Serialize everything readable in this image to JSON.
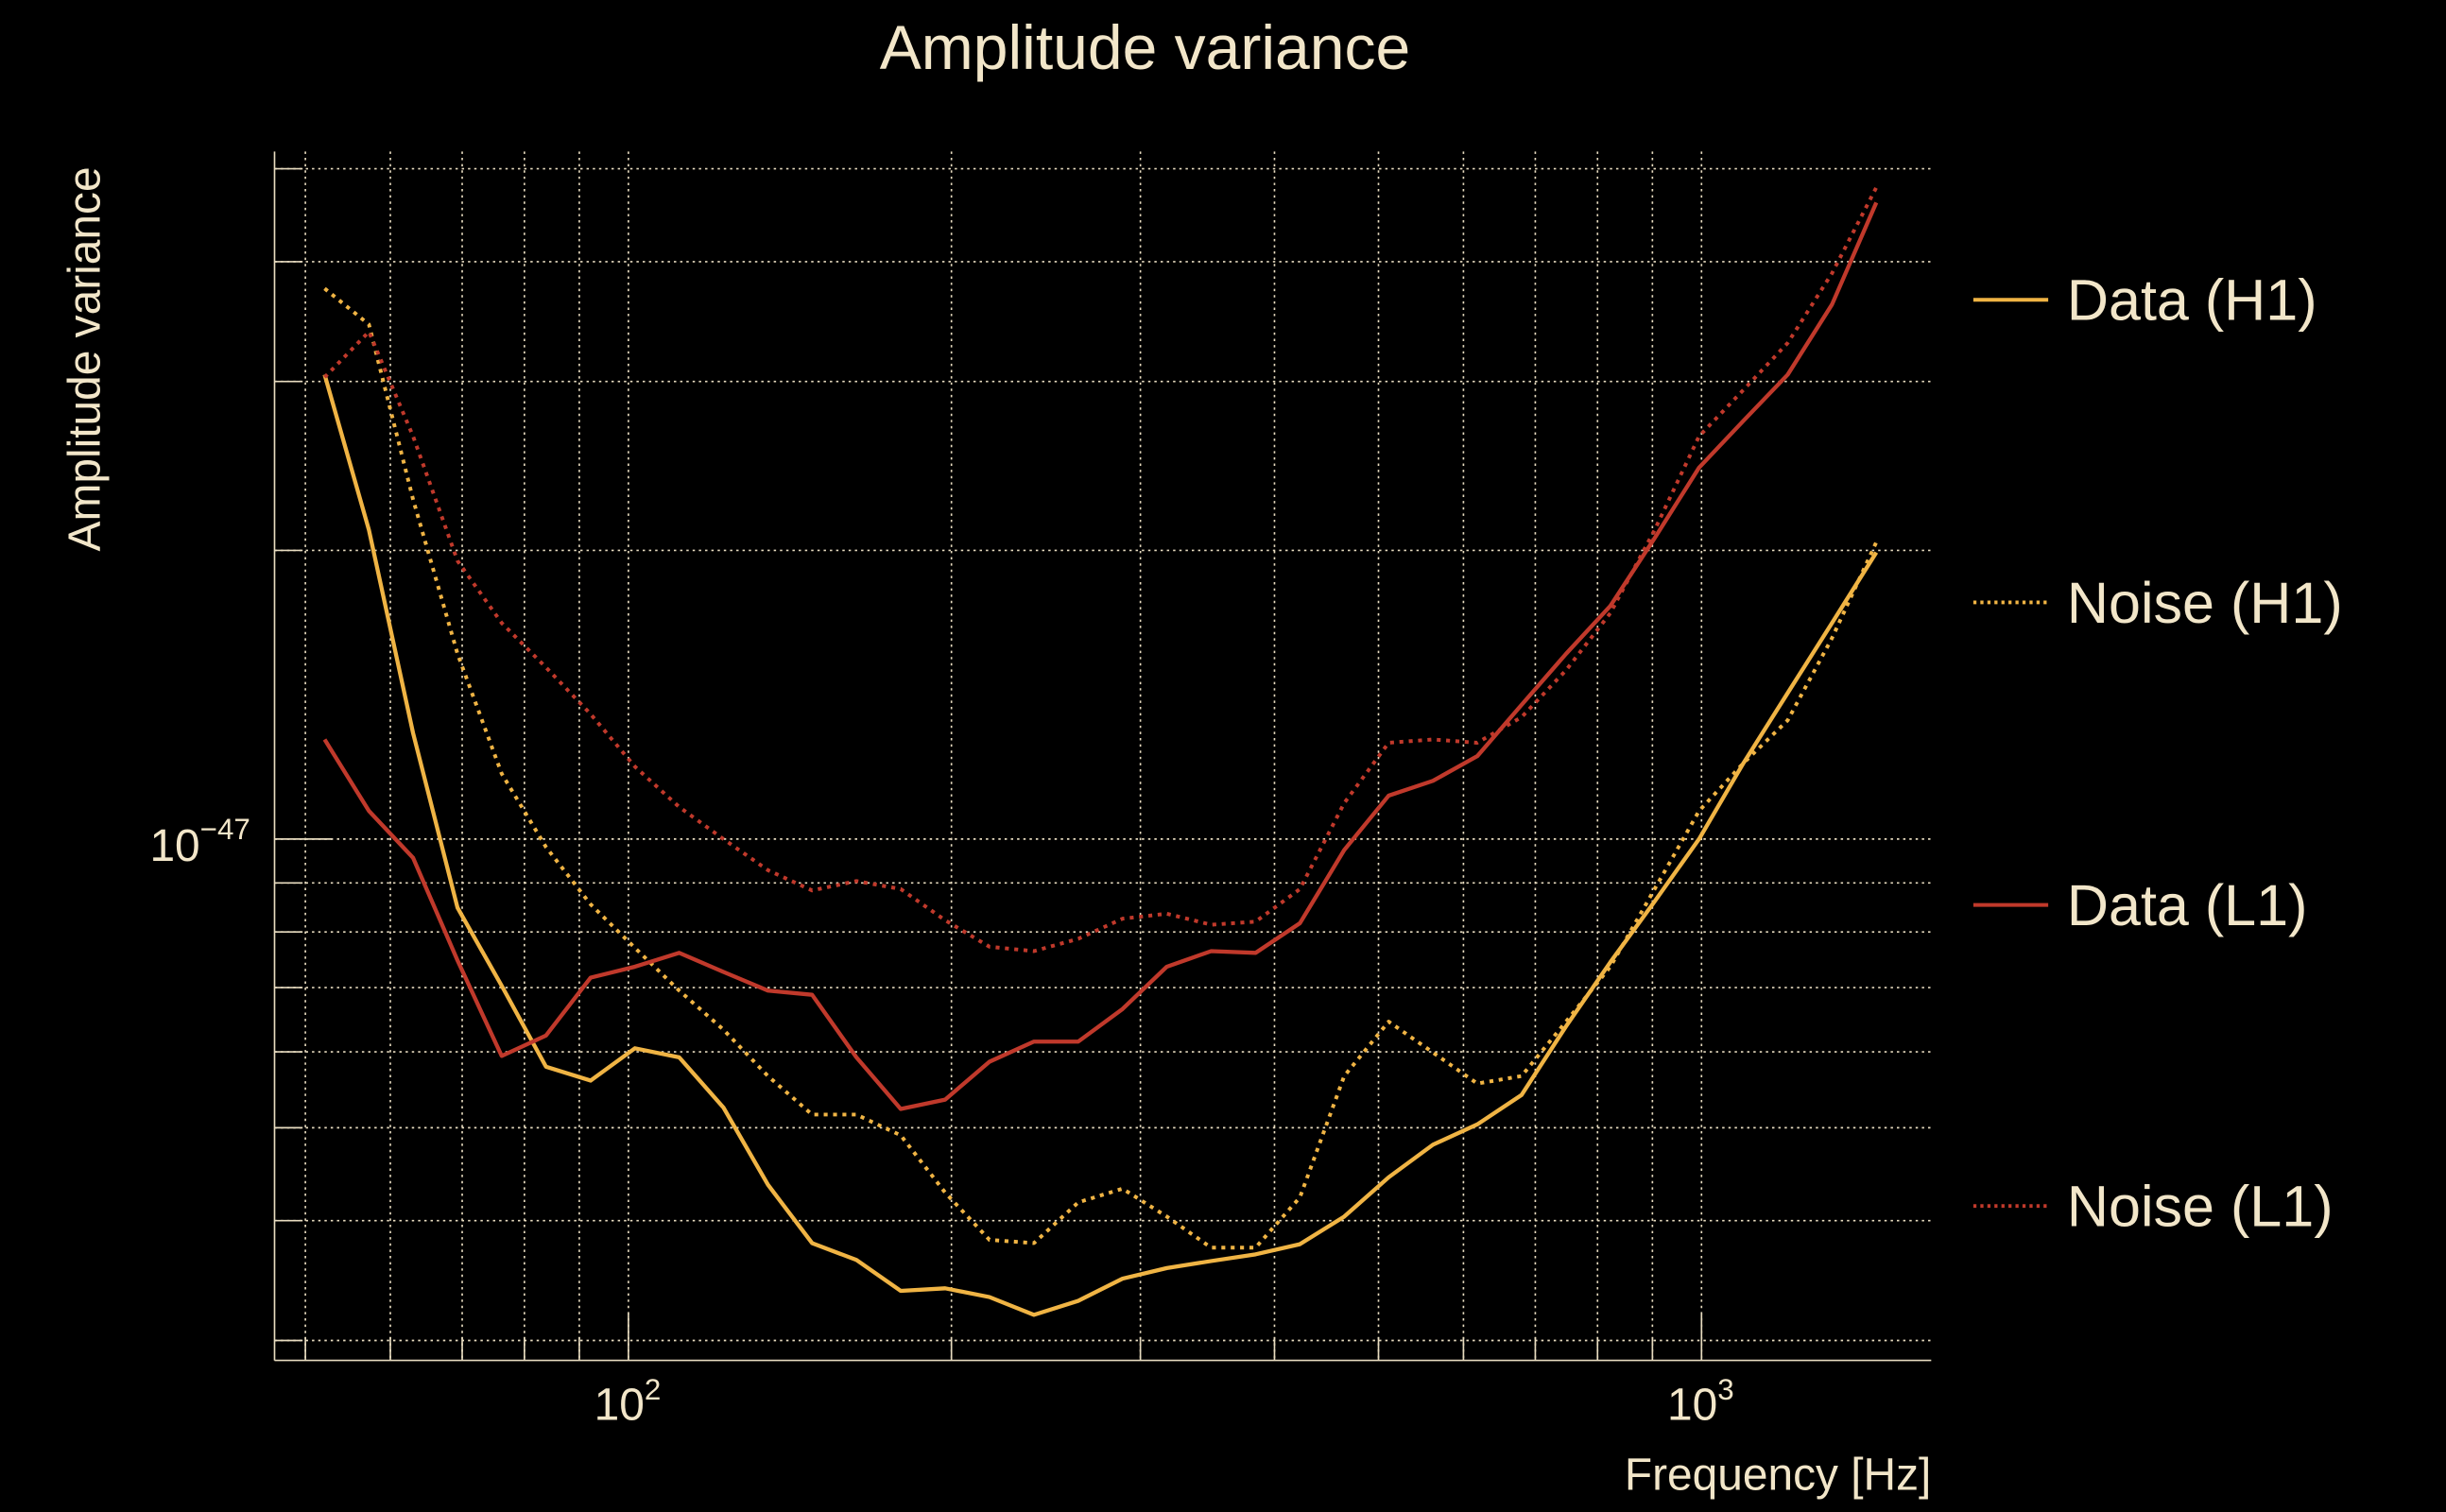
{
  "chart_data": {
    "type": "line",
    "title": "Amplitude variance",
    "xlabel": "Frequency [Hz]",
    "ylabel": "Amplitude variance",
    "xscale": "log",
    "yscale": "log",
    "xlim": [
      46.8,
      1637
    ],
    "ylim": [
      2.86e-48,
      5.21e-47
    ],
    "x_tick_labels": [
      {
        "value": 100,
        "base": "10",
        "exp": "2"
      },
      {
        "value": 1000,
        "base": "10",
        "exp": "3"
      }
    ],
    "y_tick_labels": [
      {
        "value": 1e-47,
        "base": "10",
        "exp": "−47"
      }
    ],
    "x_minor_ticks": [
      50,
      60,
      70,
      80,
      90,
      200,
      300,
      400,
      500,
      600,
      700,
      800,
      900
    ],
    "y_minor_ticks": [
      3e-48,
      4e-48,
      5e-48,
      6e-48,
      7e-48,
      8e-48,
      9e-48,
      2e-47,
      3e-47,
      4e-47,
      5e-47
    ],
    "grid": true,
    "legend_position": "right",
    "y_unit": 1e-48,
    "x": [
      52.1,
      57.3,
      63.0,
      69.3,
      76.2,
      83.8,
      92.2,
      101.4,
      111.5,
      122.6,
      134.9,
      148.3,
      163.1,
      179.4,
      197.3,
      217.0,
      238.7,
      262.5,
      288.7,
      317.5,
      349.2,
      384.1,
      422.4,
      464.6,
      511.0,
      562.0,
      618.1,
      679.8,
      747.7,
      822.3,
      904.4,
      994.7,
      1094,
      1203,
      1323,
      1455
    ],
    "series": [
      {
        "name": "Data (H1)",
        "color": "#f0b444",
        "style": "solid",
        "values": [
          30.5,
          21.0,
          12.9,
          8.48,
          7.03,
          5.79,
          5.6,
          6.05,
          5.92,
          5.25,
          4.36,
          3.79,
          3.64,
          3.38,
          3.4,
          3.33,
          3.19,
          3.3,
          3.48,
          3.57,
          3.63,
          3.69,
          3.78,
          4.04,
          4.44,
          4.8,
          5.04,
          5.41,
          6.38,
          7.44,
          8.61,
          10.0,
          12.0,
          14.2,
          16.8,
          19.9
        ]
      },
      {
        "name": "Noise (H1)",
        "color": "#f0b444",
        "style": "dotted",
        "values": [
          37.5,
          34.4,
          22.6,
          15.6,
          11.7,
          9.81,
          8.55,
          7.7,
          6.95,
          6.33,
          5.66,
          5.16,
          5.16,
          4.91,
          4.28,
          3.82,
          3.79,
          4.18,
          4.32,
          4.04,
          3.75,
          3.75,
          4.23,
          5.66,
          6.45,
          5.99,
          5.56,
          5.66,
          6.45,
          7.36,
          8.87,
          10.7,
          12.0,
          13.3,
          16.2,
          20.4
        ]
      },
      {
        "name": "Data (L1)",
        "color": "#c0392b",
        "style": "solid",
        "values": [
          12.7,
          10.7,
          9.56,
          7.47,
          5.94,
          6.24,
          7.17,
          7.36,
          7.61,
          7.27,
          6.95,
          6.88,
          5.92,
          5.23,
          5.35,
          5.86,
          6.15,
          6.15,
          6.65,
          7.36,
          7.64,
          7.61,
          8.17,
          9.74,
          11.1,
          11.5,
          12.2,
          13.8,
          15.6,
          17.5,
          20.6,
          24.4,
          27.3,
          30.5,
          36.1,
          46.1
        ]
      },
      {
        "name": "Noise (L1)",
        "color": "#c0392b",
        "style": "dotted",
        "values": [
          30.3,
          33.8,
          26.3,
          19.5,
          16.8,
          15.1,
          13.5,
          11.9,
          10.8,
          10.0,
          9.28,
          8.84,
          9.04,
          8.87,
          8.23,
          7.72,
          7.64,
          7.87,
          8.26,
          8.36,
          8.14,
          8.2,
          8.87,
          10.9,
          12.6,
          12.7,
          12.6,
          13.4,
          15.0,
          17.2,
          21.0,
          26.3,
          29.4,
          32.9,
          38.9,
          47.8
        ]
      }
    ]
  }
}
